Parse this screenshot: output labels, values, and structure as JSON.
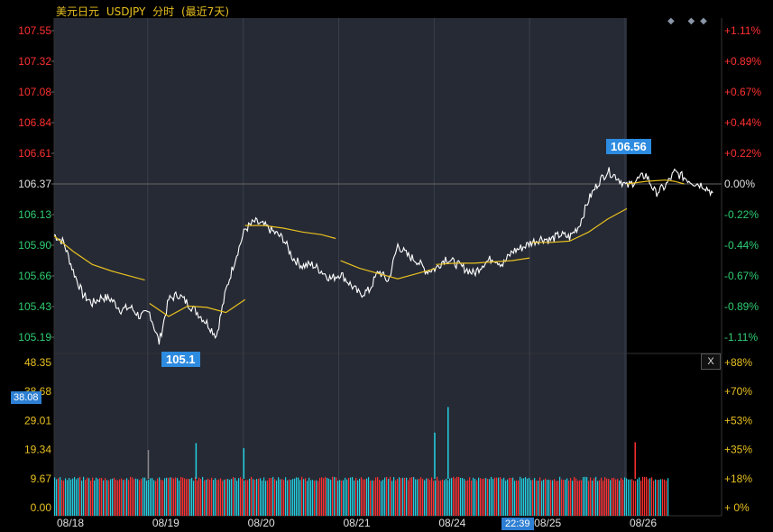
{
  "header": {
    "name": "美元日元",
    "symbol": "USDJPY",
    "mode": "分时",
    "range": "(最近7天)"
  },
  "controls": {
    "diamonds": "◆ ◆◆",
    "close": "X"
  },
  "labels": {
    "current_volume": "38.08",
    "crosshair_time": "22:39",
    "high": "106.56",
    "low": "105.1"
  },
  "colors": {
    "price_up": "#ff3030",
    "price_down": "#22d0e0",
    "price_line": "#ffffff",
    "ma_line": "#e8c020",
    "panel_bg": "#262a35",
    "pct_color": "#e8c020"
  },
  "chart_data": [
    {
      "type": "line",
      "title": "美元日元 USDJPY 分时 (最近7天)",
      "y_ticks": [
        "107.55",
        "107.32",
        "107.08",
        "106.84",
        "106.61",
        "106.37",
        "106.13",
        "105.90",
        "105.66",
        "105.43",
        "105.19"
      ],
      "y_ticks_right": [
        "+1.11%",
        "+0.89%",
        "+0.67%",
        "+0.44%",
        "+0.22%",
        "0.00%",
        "-0.22%",
        "-0.44%",
        "-0.67%",
        "-0.89%",
        "-1.11%"
      ],
      "ylim": [
        105.1,
        107.6
      ],
      "reference": 106.37,
      "x_ticks": [
        "08/18",
        "08/19",
        "08/20",
        "08/21",
        "08/24",
        "08/25",
        "08/26"
      ],
      "series": [
        {
          "kind": "price",
          "x": [
            0,
            0.1,
            0.2,
            0.3,
            0.4,
            0.5,
            0.6,
            0.7,
            0.8,
            0.9,
            1.0,
            1.1,
            1.2,
            1.3,
            1.4,
            1.5,
            1.6,
            1.7,
            1.8,
            1.9,
            2.0,
            2.1,
            2.2,
            2.3,
            2.4,
            2.5,
            2.6,
            2.7,
            2.8,
            2.9,
            3.0,
            3.1,
            3.2,
            3.3,
            3.4,
            3.5,
            3.6,
            3.7,
            3.8,
            3.9,
            4.0,
            4.1,
            4.2,
            4.3,
            4.4,
            4.5,
            4.6,
            4.7,
            4.8,
            4.9,
            5.0,
            5.1,
            5.2,
            5.3,
            5.4,
            5.5,
            5.6,
            5.7,
            5.8,
            5.9,
            6.0,
            6.1,
            6.2,
            6.3,
            6.4,
            6.5,
            6.6,
            6.7,
            6.8,
            6.9
          ],
          "y": [
            105.98,
            105.92,
            105.7,
            105.52,
            105.45,
            105.5,
            105.48,
            105.4,
            105.42,
            105.35,
            105.38,
            105.15,
            105.48,
            105.52,
            105.45,
            105.38,
            105.3,
            105.2,
            105.55,
            105.8,
            106.02,
            106.08,
            106.05,
            106.0,
            105.95,
            105.8,
            105.74,
            105.75,
            105.7,
            105.64,
            105.68,
            105.6,
            105.52,
            105.55,
            105.7,
            105.62,
            105.9,
            105.82,
            105.78,
            105.7,
            105.72,
            105.8,
            105.76,
            105.72,
            105.68,
            105.76,
            105.8,
            105.75,
            105.85,
            105.88,
            105.92,
            105.95,
            105.94,
            105.98,
            105.96,
            106.05,
            106.25,
            106.38,
            106.47,
            106.42,
            106.35,
            106.4,
            106.44,
            106.3,
            106.35,
            106.46,
            106.42,
            106.38,
            106.36,
            106.3
          ]
        },
        {
          "kind": "average",
          "segments": [
            {
              "x": [
                0,
                0.2,
                0.4,
                0.6,
                0.8,
                0.95
              ],
              "y": [
                105.97,
                105.85,
                105.75,
                105.7,
                105.66,
                105.63
              ]
            },
            {
              "x": [
                1.0,
                1.2,
                1.4,
                1.6,
                1.8,
                2.0
              ],
              "y": [
                105.45,
                105.35,
                105.43,
                105.42,
                105.38,
                105.48
              ]
            },
            {
              "x": [
                2.0,
                2.2,
                2.4,
                2.6,
                2.8,
                2.95
              ],
              "y": [
                106.05,
                106.05,
                106.03,
                106.0,
                105.98,
                105.95
              ]
            },
            {
              "x": [
                3.0,
                3.2,
                3.4,
                3.6,
                3.8,
                4.0
              ],
              "y": [
                105.78,
                105.72,
                105.68,
                105.64,
                105.68,
                105.72
              ]
            },
            {
              "x": [
                4.0,
                4.2,
                4.4,
                4.6,
                4.8,
                4.98
              ],
              "y": [
                105.75,
                105.76,
                105.76,
                105.77,
                105.78,
                105.8
              ]
            },
            {
              "x": [
                5.0,
                5.2,
                5.4,
                5.6,
                5.8,
                6.0
              ],
              "y": [
                105.92,
                105.92,
                105.93,
                106.0,
                106.1,
                106.18
              ]
            },
            {
              "x": [
                6.0,
                6.2,
                6.4,
                6.5,
                6.6
              ],
              "y": [
                106.37,
                106.39,
                106.4,
                106.39,
                106.37
              ]
            }
          ]
        }
      ]
    },
    {
      "type": "bar",
      "title": "volume",
      "y_ticks": [
        "48.35",
        "38.68",
        "29.01",
        "19.34",
        "9.67",
        "0.00"
      ],
      "y_ticks_right": [
        "+88%",
        "+70%",
        "+53%",
        "+35%",
        "+18%",
        "+ 0%"
      ],
      "ylim": [
        0,
        48.35
      ],
      "base_level": 9.6,
      "spikes": [
        {
          "x": 0.98,
          "value": 19.2,
          "color": "gray"
        },
        {
          "x": 1.48,
          "value": 21.5,
          "color": "cyan"
        },
        {
          "x": 1.98,
          "value": 19.8,
          "color": "cyan"
        },
        {
          "x": 3.98,
          "value": 25.0,
          "color": "cyan"
        },
        {
          "x": 4.12,
          "value": 33.5,
          "color": "cyan"
        },
        {
          "x": 6.08,
          "value": 21.8,
          "color": "red"
        }
      ]
    }
  ]
}
